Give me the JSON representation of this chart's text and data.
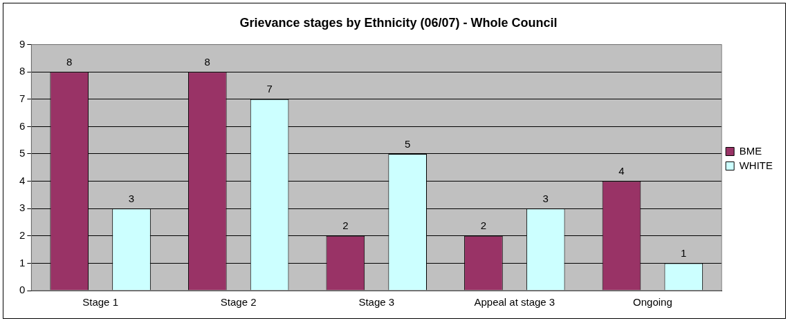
{
  "chart_data": {
    "type": "bar",
    "title": "Grievance stages by Ethnicity (06/07) - Whole Council",
    "categories": [
      "Stage 1",
      "Stage 2",
      "Stage 3",
      "Appeal at stage 3",
      "Ongoing"
    ],
    "series": [
      {
        "name": "BME",
        "color": "#993366",
        "values": [
          8,
          8,
          2,
          2,
          4
        ]
      },
      {
        "name": "WHITE",
        "color": "#ccffff",
        "values": [
          3,
          7,
          5,
          3,
          1
        ]
      }
    ],
    "ylim": [
      0,
      9
    ],
    "yticks": [
      0,
      1,
      2,
      3,
      4,
      5,
      6,
      7,
      8,
      9
    ],
    "grid": "y",
    "legend": "right",
    "data_labels": true
  }
}
